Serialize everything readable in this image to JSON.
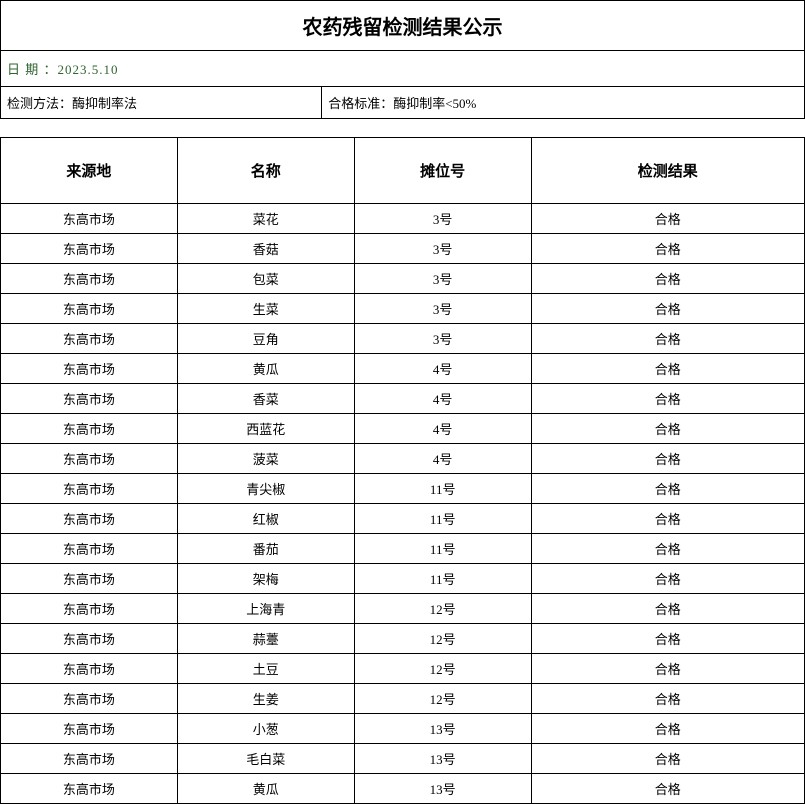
{
  "title": "农药残留检测结果公示",
  "date_label": "日 期 ：",
  "date_value": "2023.5.10",
  "method_label": "检测方法：",
  "method_value": "酶抑制率法",
  "standard_label": "合格标准：",
  "standard_value": "酶抑制率<50%",
  "columns": [
    "来源地",
    "名称",
    "摊位号",
    "检测结果"
  ],
  "rows": [
    [
      "东高市场",
      "菜花",
      "3号",
      "合格"
    ],
    [
      "东高市场",
      "香菇",
      "3号",
      "合格"
    ],
    [
      "东高市场",
      "包菜",
      "3号",
      "合格"
    ],
    [
      "东高市场",
      "生菜",
      "3号",
      "合格"
    ],
    [
      "东高市场",
      "豆角",
      "3号",
      "合格"
    ],
    [
      "东高市场",
      "黄瓜",
      "4号",
      "合格"
    ],
    [
      "东高市场",
      "香菜",
      "4号",
      "合格"
    ],
    [
      "东高市场",
      "西蓝花",
      "4号",
      "合格"
    ],
    [
      "东高市场",
      "菠菜",
      "4号",
      "合格"
    ],
    [
      "东高市场",
      "青尖椒",
      "11号",
      "合格"
    ],
    [
      "东高市场",
      "红椒",
      "11号",
      "合格"
    ],
    [
      "东高市场",
      "番茄",
      "11号",
      "合格"
    ],
    [
      "东高市场",
      "架梅",
      "11号",
      "合格"
    ],
    [
      "东高市场",
      "上海青",
      "12号",
      "合格"
    ],
    [
      "东高市场",
      "蒜薹",
      "12号",
      "合格"
    ],
    [
      "东高市场",
      "土豆",
      "12号",
      "合格"
    ],
    [
      "东高市场",
      "生姜",
      "12号",
      "合格"
    ],
    [
      "东高市场",
      "小葱",
      "13号",
      "合格"
    ],
    [
      "东高市场",
      "毛白菜",
      "13号",
      "合格"
    ],
    [
      "东高市场",
      "黄瓜",
      "13号",
      "合格"
    ]
  ]
}
